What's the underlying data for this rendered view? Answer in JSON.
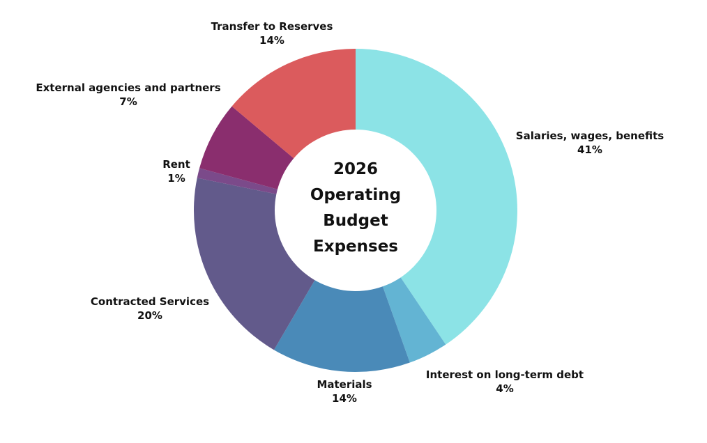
{
  "chart_data": {
    "type": "pie",
    "variant": "donut",
    "title": "2026 Operating Budget Expenses",
    "title_lines": [
      "2026",
      "Operating",
      "Budget",
      "Expenses"
    ],
    "unit": "%",
    "slices": [
      {
        "label": "Salaries, wages, benefits",
        "value": 41,
        "display": "41%",
        "color": "#8ce3e6"
      },
      {
        "label": "Interest on long-term debt",
        "value": 4,
        "display": "4%",
        "color": "#63b4d3"
      },
      {
        "label": "Materials",
        "value": 14,
        "display": "14%",
        "color": "#4a8ab8"
      },
      {
        "label": "Contracted Services",
        "value": 20,
        "display": "20%",
        "color": "#625a8b"
      },
      {
        "label": "Rent",
        "value": 1,
        "display": "1%",
        "color": "#7b4a8a"
      },
      {
        "label": "External agencies and partners",
        "value": 7,
        "display": "7%",
        "color": "#8a2e6e"
      },
      {
        "label": "Transfer to Reserves",
        "value": 14,
        "display": "14%",
        "color": "#db5b5d"
      }
    ],
    "legend": "none",
    "labels_outside": true
  }
}
